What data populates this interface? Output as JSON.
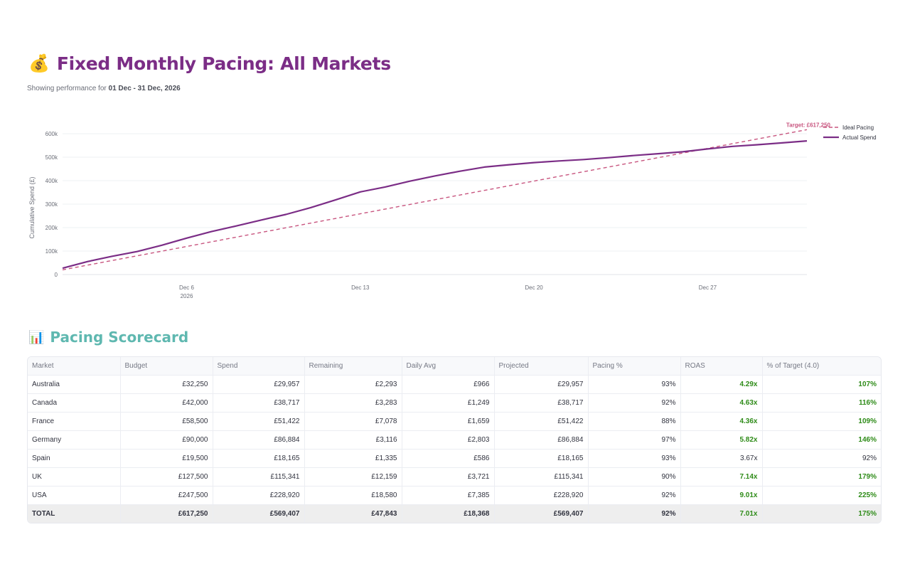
{
  "header": {
    "icon": "money-bag-icon",
    "emoji": "💰",
    "title": "Fixed Monthly Pacing: All Markets",
    "caption_prefix": "Showing performance for ",
    "date_range": "01 Dec - 31 Dec, 2026"
  },
  "colors": {
    "title": "#7b2d86",
    "actual": "#7b2d86",
    "ideal": "#c8557f",
    "section": "#5fb8b0",
    "good": "#2e8b18"
  },
  "chart_data": {
    "type": "line",
    "ylabel": "Cumulative Spend (£)",
    "y_ticks": [
      "0",
      "100k",
      "200k",
      "300k",
      "400k",
      "500k",
      "600k"
    ],
    "ylim": [
      0,
      600000
    ],
    "x_ticks": [
      {
        "label": "Dec 6",
        "sub": "2026",
        "day": 6
      },
      {
        "label": "Dec 13",
        "sub": "",
        "day": 13
      },
      {
        "label": "Dec 20",
        "sub": "",
        "day": 20
      },
      {
        "label": "Dec 27",
        "sub": "",
        "day": 27
      }
    ],
    "target_label": "Target: £617,250",
    "legend_position": "top-right",
    "grid": true,
    "series": [
      {
        "name": "Ideal Pacing",
        "style": "dashed",
        "x": [
          1,
          31
        ],
        "values": [
          19911,
          617250
        ]
      },
      {
        "name": "Actual Spend",
        "style": "solid",
        "x": [
          1,
          2,
          3,
          4,
          5,
          6,
          7,
          8,
          9,
          10,
          11,
          12,
          13,
          14,
          15,
          16,
          17,
          18,
          19,
          20,
          21,
          22,
          23,
          24,
          25,
          26,
          27,
          28,
          29,
          30,
          31
        ],
        "values": [
          27000,
          55000,
          78000,
          98000,
          125000,
          155000,
          183000,
          207000,
          232000,
          256000,
          285000,
          318000,
          352000,
          373000,
          398000,
          420000,
          440000,
          458000,
          468000,
          477000,
          484000,
          490000,
          498000,
          507000,
          515000,
          523000,
          535000,
          546000,
          553000,
          561000,
          569407
        ]
      }
    ]
  },
  "scorecard": {
    "icon": "bar-chart-icon",
    "emoji": "📊",
    "title": "Pacing Scorecard",
    "columns": [
      "Market",
      "Budget",
      "Spend",
      "Remaining",
      "Daily Avg",
      "Projected",
      "Pacing %",
      "ROAS",
      "% of Target (4.0)"
    ],
    "rows": [
      {
        "market": "Australia",
        "budget": "£32,250",
        "spend": "£29,957",
        "remaining": "£2,293",
        "daily": "£966",
        "projected": "£29,957",
        "pacing": "93%",
        "roas": "4.29x",
        "target": "107%",
        "good": true
      },
      {
        "market": "Canada",
        "budget": "£42,000",
        "spend": "£38,717",
        "remaining": "£3,283",
        "daily": "£1,249",
        "projected": "£38,717",
        "pacing": "92%",
        "roas": "4.63x",
        "target": "116%",
        "good": true
      },
      {
        "market": "France",
        "budget": "£58,500",
        "spend": "£51,422",
        "remaining": "£7,078",
        "daily": "£1,659",
        "projected": "£51,422",
        "pacing": "88%",
        "roas": "4.36x",
        "target": "109%",
        "good": true
      },
      {
        "market": "Germany",
        "budget": "£90,000",
        "spend": "£86,884",
        "remaining": "£3,116",
        "daily": "£2,803",
        "projected": "£86,884",
        "pacing": "97%",
        "roas": "5.82x",
        "target": "146%",
        "good": true
      },
      {
        "market": "Spain",
        "budget": "£19,500",
        "spend": "£18,165",
        "remaining": "£1,335",
        "daily": "£586",
        "projected": "£18,165",
        "pacing": "93%",
        "roas": "3.67x",
        "target": "92%",
        "good": false
      },
      {
        "market": "UK",
        "budget": "£127,500",
        "spend": "£115,341",
        "remaining": "£12,159",
        "daily": "£3,721",
        "projected": "£115,341",
        "pacing": "90%",
        "roas": "7.14x",
        "target": "179%",
        "good": true
      },
      {
        "market": "USA",
        "budget": "£247,500",
        "spend": "£228,920",
        "remaining": "£18,580",
        "daily": "£7,385",
        "projected": "£228,920",
        "pacing": "92%",
        "roas": "9.01x",
        "target": "225%",
        "good": true
      }
    ],
    "total": {
      "market": "TOTAL",
      "budget": "£617,250",
      "spend": "£569,407",
      "remaining": "£47,843",
      "daily": "£18,368",
      "projected": "£569,407",
      "pacing": "92%",
      "roas": "7.01x",
      "target": "175%",
      "good": true
    }
  }
}
